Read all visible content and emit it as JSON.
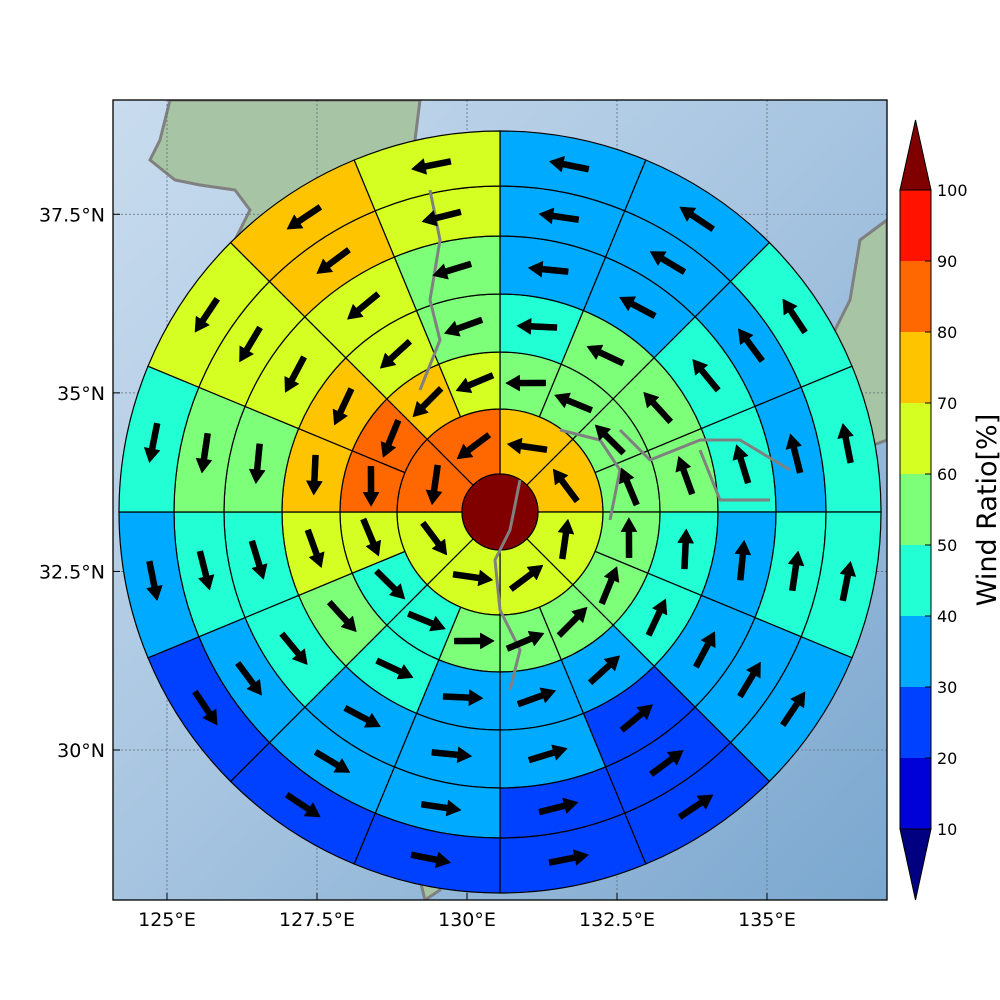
{
  "map": {
    "x_ticks": [
      "125°E",
      "127.5°E",
      "130°E",
      "132.5°E",
      "135°E"
    ],
    "y_ticks": [
      "37.5°N",
      "35°N",
      "32.5°N",
      "30°N"
    ],
    "x_tick_values": [
      125,
      127.5,
      130,
      132.5,
      135
    ],
    "y_tick_values": [
      37.5,
      35,
      32.5,
      30
    ],
    "lon_range": [
      124.1,
      137.0
    ],
    "lat_range": [
      27.9,
      39.1
    ],
    "center_color": "#800000",
    "colors": {
      "ocean": "#a9c6e0",
      "land": "#9fbfa2",
      "coastline": "#808080",
      "grid": "#606c78"
    }
  },
  "colorbar": {
    "title": "Wind Ratio[%]",
    "levels": [
      10,
      20,
      30,
      40,
      50,
      60,
      70,
      80,
      90,
      100
    ],
    "labels": [
      "10",
      "20",
      "30",
      "40",
      "50",
      "60",
      "70",
      "80",
      "90",
      "100"
    ],
    "colors": [
      "#0000d8",
      "#0040ff",
      "#00aaff",
      "#22ffd4",
      "#7dff7a",
      "#d5ff22",
      "#ffc400",
      "#ff6700",
      "#ff1300"
    ],
    "under_color": "#000080",
    "over_color": "#800000"
  },
  "rings": {
    "sectors_per_ring": 16,
    "values": [
      [
        75,
        75,
        65,
        65,
        65,
        65,
        85,
        85
      ],
      [
        55,
        55,
        55,
        55,
        55,
        55,
        55,
        55,
        55,
        45,
        45,
        65,
        85,
        85,
        75,
        65
      ],
      [
        45,
        55,
        55,
        55,
        45,
        45,
        35,
        35,
        35,
        45,
        55,
        65,
        75,
        75,
        65,
        55
      ],
      [
        35,
        35,
        45,
        45,
        35,
        35,
        25,
        35,
        35,
        35,
        45,
        45,
        55,
        65,
        65,
        55
      ],
      [
        35,
        35,
        35,
        35,
        45,
        35,
        25,
        25,
        35,
        35,
        35,
        45,
        55,
        65,
        75,
        65
      ],
      [
        35,
        35,
        45,
        45,
        45,
        35,
        25,
        25,
        25,
        25,
        25,
        35,
        45,
        65,
        75,
        65
      ]
    ],
    "ring1_sectors": 8
  }
}
